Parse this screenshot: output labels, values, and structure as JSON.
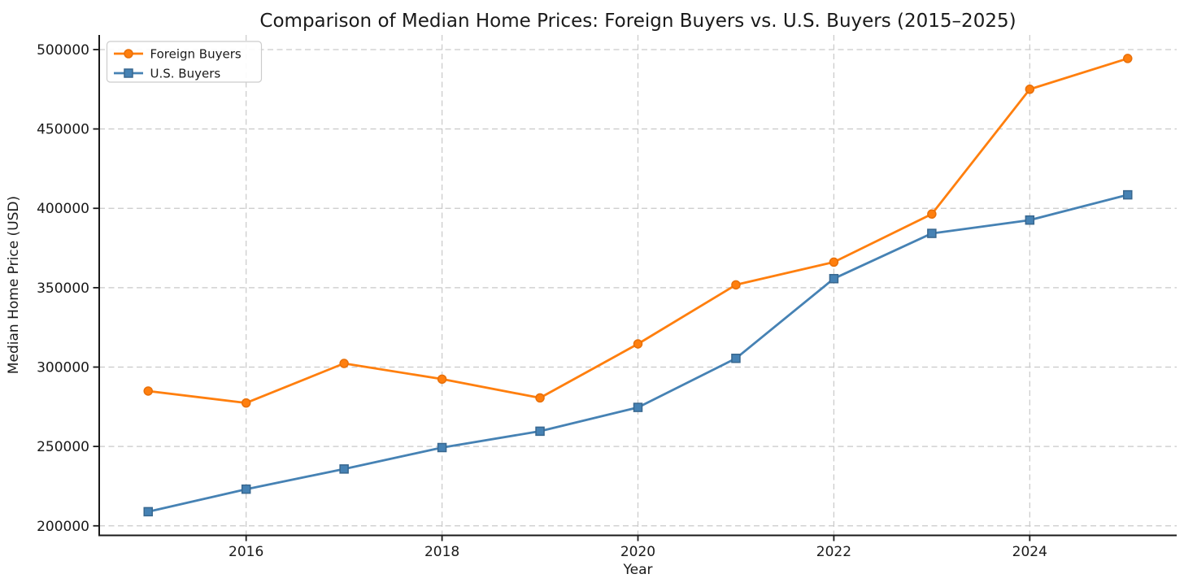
{
  "chart_data": {
    "type": "line",
    "title": "Comparison of Median Home Prices: Foreign Buyers vs. U.S. Buyers (2015–2025)",
    "xlabel": "Year",
    "ylabel": "Median Home Price (USD)",
    "x": [
      2015,
      2016,
      2017,
      2018,
      2019,
      2020,
      2021,
      2022,
      2023,
      2024,
      2025
    ],
    "series": [
      {
        "name": "Foreign Buyers",
        "color": "#ff7f0e",
        "marker_edge": "#e8700a",
        "marker": "circle",
        "values": [
          284900,
          277400,
          302300,
          292400,
          280600,
          314600,
          351800,
          366100,
          396400,
          475000,
          494400
        ]
      },
      {
        "name": "U.S. Buyers",
        "color": "#4682b4",
        "marker_edge": "#38678f",
        "marker": "square",
        "values": [
          208900,
          223100,
          235800,
          249300,
          259600,
          274600,
          305500,
          355700,
          384200,
          392600,
          408500
        ]
      }
    ],
    "xticks": [
      2016,
      2018,
      2020,
      2022,
      2024
    ],
    "xtick_labels": [
      "2016",
      "2018",
      "2020",
      "2022",
      "2024"
    ],
    "yticks": [
      200000,
      250000,
      300000,
      350000,
      400000,
      450000,
      500000
    ],
    "ytick_labels": [
      "200000",
      "250000",
      "300000",
      "350000",
      "400000",
      "450000",
      "500000"
    ],
    "xlim": [
      2014.5,
      2025.5
    ],
    "ylim": [
      194500,
      509200
    ],
    "grid": true,
    "grid_color": "#c9c9c9",
    "axis_color": "#1a1a1a",
    "background": "#ffffff",
    "legend_position": "upper left"
  }
}
